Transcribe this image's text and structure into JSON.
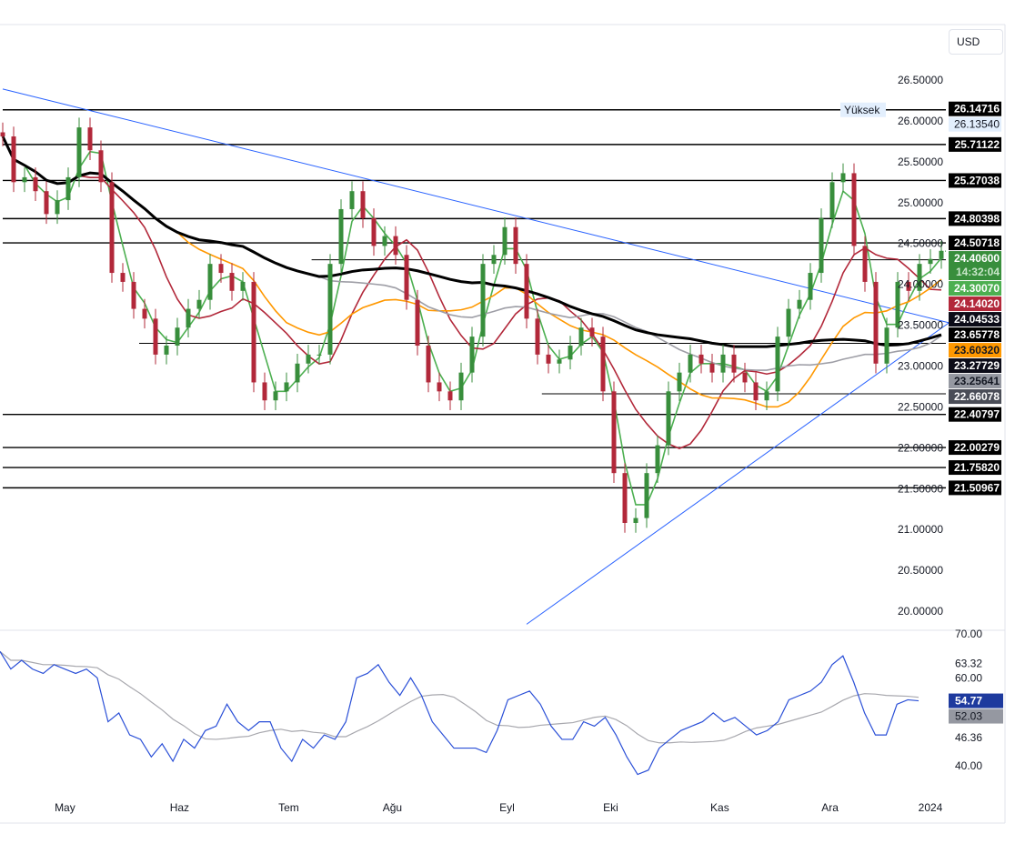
{
  "currency_button": "USD",
  "chart_data": {
    "type": "candlestick",
    "instrument_currency": "USD",
    "x_labels": [
      {
        "label": "May",
        "index": 5.7
      },
      {
        "label": "Haz",
        "index": 16.2
      },
      {
        "label": "Tem",
        "index": 26.2
      },
      {
        "label": "Ağu",
        "index": 35.7
      },
      {
        "label": "Eyl",
        "index": 46.2
      },
      {
        "label": "Eki",
        "index": 55.7
      },
      {
        "label": "Kas",
        "index": 65.7
      },
      {
        "label": "Ara",
        "index": 75.8
      },
      {
        "label": "2024",
        "index": 85
      }
    ],
    "y_ticks": [
      "26.50000",
      "26.00000",
      "25.50000",
      "25.00000",
      "24.50000",
      "24.00000",
      "23.50000",
      "23.00000",
      "22.50000",
      "22.00000",
      "21.50000",
      "21.00000",
      "20.50000",
      "20.00000"
    ],
    "ylim": [
      20.0,
      26.5
    ],
    "closes": [
      25.81,
      25.25,
      25.31,
      25.14,
      24.86,
      25.03,
      25.31,
      25.92,
      25.64,
      25.25,
      24.14,
      24.03,
      23.7,
      23.58,
      23.14,
      23.25,
      23.47,
      23.7,
      23.81,
      24.25,
      24.14,
      23.92,
      24.03,
      22.8,
      22.58,
      22.69,
      22.8,
      23.03,
      23.14,
      23.14,
      24.25,
      24.92,
      25.14,
      24.81,
      24.47,
      24.59,
      24.36,
      23.81,
      23.25,
      22.8,
      22.69,
      22.58,
      22.92,
      23.36,
      24.25,
      24.36,
      24.7,
      24.25,
      23.58,
      23.14,
      23.03,
      23.08,
      23.25,
      23.47,
      23.36,
      22.69,
      21.69,
      21.08,
      21.14,
      21.69,
      22.03,
      22.69,
      22.92,
      23.14,
      23.03,
      22.92,
      23.14,
      22.92,
      22.8,
      22.58,
      22.69,
      23.36,
      23.7,
      23.81,
      24.14,
      24.81,
      25.25,
      25.36,
      24.47,
      24.03,
      23.03,
      23.47,
      24.03,
      23.92,
      24.25,
      24.31,
      24.41
    ],
    "moving_averages": [
      {
        "period": 3,
        "color": "#4caf50"
      },
      {
        "period": 8,
        "color": "#b2283a"
      },
      {
        "period": 17,
        "color": "#ff9800"
      },
      {
        "period": 30,
        "color": "#9e9ea6"
      },
      {
        "period": 45,
        "color": "#000000"
      }
    ],
    "horizontal_levels": [
      {
        "value": "26.13540",
        "label": "Yüksek",
        "from": 0
      },
      {
        "value": "26.14716",
        "from": null
      },
      {
        "value": "25.71122",
        "from": 0
      },
      {
        "value": "25.27038",
        "from": 0
      },
      {
        "value": "24.80398",
        "from": 0
      },
      {
        "value": "24.50718",
        "from": 0
      },
      {
        "value": "24.30070",
        "from": 28.3
      },
      {
        "value": "23.27729",
        "from": 12.5
      },
      {
        "value": "22.66078",
        "from": 49.4
      },
      {
        "value": "22.40797",
        "from": 0
      },
      {
        "value": "22.00279",
        "from": 0
      },
      {
        "value": "21.75820",
        "from": 0
      },
      {
        "value": "21.50967",
        "from": 0
      }
    ],
    "trend_lines": [
      {
        "from": [
          0,
          26.39
        ],
        "to": [
          86.7,
          23.53
        ],
        "color": "#2962ff"
      },
      {
        "from": [
          48,
          19.84
        ],
        "to": [
          86.7,
          23.53
        ],
        "color": "#2962ff"
      }
    ],
    "price_labels": [
      {
        "value": "26.14716",
        "bg": "#000000",
        "fg": "#ffffff"
      },
      {
        "value": "26.13540",
        "bg": "#e3effd",
        "fg": "#131722",
        "tag": "Yüksek"
      },
      {
        "value": "25.71122",
        "bg": "#000000",
        "fg": "#ffffff"
      },
      {
        "value": "25.27038",
        "bg": "#000000",
        "fg": "#ffffff"
      },
      {
        "value": "24.80398",
        "bg": "#000000",
        "fg": "#ffffff"
      },
      {
        "value": "24.50718",
        "bg": "#000000",
        "fg": "#ffffff"
      },
      {
        "value": "24.40600",
        "bg": "#388e3c",
        "fg": "#ffffff",
        "sub": "14:32:04"
      },
      {
        "value": "24.30070",
        "bg": "#4caf50",
        "fg": "#ffffff"
      },
      {
        "value": "24.14020",
        "bg": "#b2283a",
        "fg": "#ffffff"
      },
      {
        "value": "24.04533",
        "bg": "#0c0c18",
        "fg": "#ffffff"
      },
      {
        "value": "23.65778",
        "bg": "#000000",
        "fg": "#ffffff"
      },
      {
        "value": "23.60320",
        "bg": "#ff9800",
        "fg": "#131722"
      },
      {
        "value": "23.27729",
        "bg": "#0c0c18",
        "fg": "#ffffff"
      },
      {
        "value": "23.25641",
        "bg": "#9598a1",
        "fg": "#131722"
      },
      {
        "value": "22.66078",
        "bg": "#4a4d57",
        "fg": "#ffffff"
      },
      {
        "value": "22.40797",
        "bg": "#000000",
        "fg": "#ffffff"
      },
      {
        "value": "22.00279",
        "bg": "#000000",
        "fg": "#ffffff"
      },
      {
        "value": "21.75820",
        "bg": "#000000",
        "fg": "#ffffff"
      },
      {
        "value": "21.50967",
        "bg": "#000000",
        "fg": "#ffffff"
      }
    ],
    "colors": {
      "up": "#26a69a",
      "down": "#ef5350",
      "up_body": "#388e3c",
      "down_body": "#b2283a"
    },
    "rsi": {
      "ylim": [
        36,
        72
      ],
      "y_ticks": [
        "70.00",
        "63.32",
        "60.00",
        "46.36",
        "40.00"
      ],
      "values": [
        66,
        62,
        64,
        62,
        61,
        63,
        62,
        61,
        62,
        60,
        50,
        52,
        47,
        46,
        42,
        45,
        41,
        46,
        44,
        48,
        49,
        54,
        50,
        48,
        50,
        50,
        44,
        41,
        46,
        44,
        47,
        46,
        50,
        60,
        61,
        63,
        59,
        56,
        60,
        56,
        50,
        47,
        44,
        44,
        44,
        43,
        48,
        55,
        56,
        57,
        54,
        49,
        46,
        46,
        50,
        49,
        51,
        47,
        42,
        38,
        39,
        44,
        46,
        48,
        49,
        50,
        52,
        50,
        51,
        49,
        47,
        48,
        50,
        55,
        56,
        57,
        59,
        63,
        65,
        59,
        52,
        47,
        47,
        54,
        55,
        54.77
      ],
      "labels": [
        {
          "value": "54.77",
          "bg": "#1e3a9e",
          "fg": "#ffffff"
        },
        {
          "value": "52.03",
          "bg": "#9598a1",
          "fg": "#131722"
        }
      ],
      "line_color": "#2a4fd7",
      "ma_color": "#a8a8ae",
      "ma_period": 10
    }
  }
}
